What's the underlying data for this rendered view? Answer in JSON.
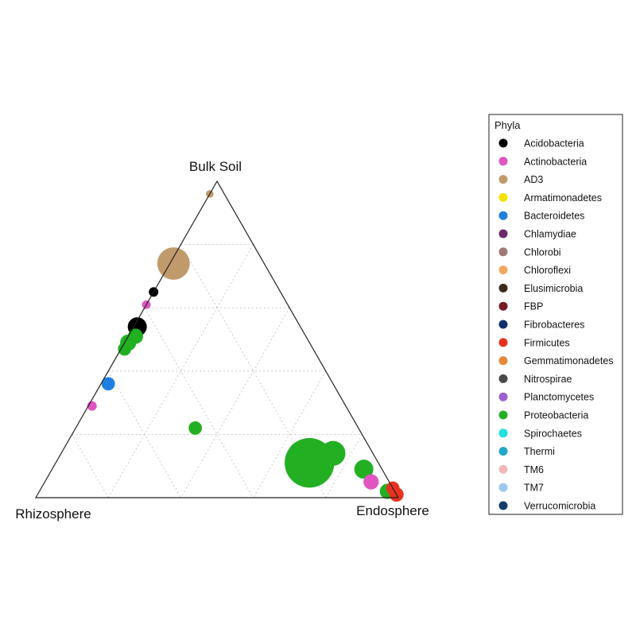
{
  "chart_data": {
    "type": "scatter",
    "subtype": "ternary",
    "vertices": {
      "top": "Bulk Soil",
      "left": "Rhizosphere",
      "right": "Endosphere"
    },
    "grid": "dotted, 5 divisions",
    "legend": {
      "title": "Phyla",
      "placement": "right",
      "entries": [
        {
          "name": "Acidobacteria",
          "color": "#000000"
        },
        {
          "name": "Actinobacteria",
          "color": "#e055c0"
        },
        {
          "name": "AD3",
          "color": "#c19a6b"
        },
        {
          "name": "Armatimonadetes",
          "color": "#f2e200"
        },
        {
          "name": "Bacteroidetes",
          "color": "#1e7fe0"
        },
        {
          "name": "Chlamydiae",
          "color": "#6b2a6b"
        },
        {
          "name": "Chlorobi",
          "color": "#a07878"
        },
        {
          "name": "Chloroflexi",
          "color": "#f0a860"
        },
        {
          "name": "Elusimicrobia",
          "color": "#3b2a1a"
        },
        {
          "name": "FBP",
          "color": "#7a1a26"
        },
        {
          "name": "Fibrobacteres",
          "color": "#10306a"
        },
        {
          "name": "Firmicutes",
          "color": "#e8321e"
        },
        {
          "name": "Gemmatimonadetes",
          "color": "#e8883a"
        },
        {
          "name": "Nitrospirae",
          "color": "#4a4a4a"
        },
        {
          "name": "Planctomycetes",
          "color": "#9a60d0"
        },
        {
          "name": "Proteobacteria",
          "color": "#22b022"
        },
        {
          "name": "Spirochaetes",
          "color": "#20e0e0"
        },
        {
          "name": "Thermi",
          "color": "#20a8c8"
        },
        {
          "name": "TM6",
          "color": "#f2b8b8"
        },
        {
          "name": "TM7",
          "color": "#9cc8f0"
        },
        {
          "name": "Verrucomicrobia",
          "color": "#133d6a"
        }
      ]
    },
    "points": [
      {
        "phylum": "AD3",
        "bulk": 0.74,
        "rhizo": 0.25,
        "endo": 0.01,
        "size": 3.4
      },
      {
        "phylum": "Acidobacteria",
        "bulk": 0.54,
        "rhizo": 0.45,
        "endo": 0.01,
        "size": 2.0
      },
      {
        "phylum": "Proteobacteria",
        "bulk": 0.51,
        "rhizo": 0.47,
        "endo": 0.02,
        "size": 1.6
      },
      {
        "phylum": "Proteobacteria",
        "bulk": 0.49,
        "rhizo": 0.5,
        "endo": 0.01,
        "size": 1.7
      },
      {
        "phylum": "Proteobacteria",
        "bulk": 0.47,
        "rhizo": 0.52,
        "endo": 0.01,
        "size": 1.4
      },
      {
        "phylum": "Bacteroidetes",
        "bulk": 0.36,
        "rhizo": 0.62,
        "endo": 0.02,
        "size": 1.4
      },
      {
        "phylum": "Actinobacteria",
        "bulk": 0.29,
        "rhizo": 0.7,
        "endo": 0.01,
        "size": 1.0
      },
      {
        "phylum": "Proteobacteria",
        "bulk": 0.22,
        "rhizo": 0.45,
        "endo": 0.33,
        "size": 1.4
      },
      {
        "phylum": "Proteobacteria",
        "bulk": 0.11,
        "rhizo": 0.19,
        "endo": 0.7,
        "size": 5.2
      },
      {
        "phylum": "Proteobacteria",
        "bulk": 0.14,
        "rhizo": 0.2,
        "endo": 0.66,
        "size": 2.5
      },
      {
        "phylum": "Proteobacteria",
        "bulk": 0.14,
        "rhizo": 0.11,
        "endo": 0.75,
        "size": 2.6
      },
      {
        "phylum": "Proteobacteria",
        "bulk": 0.09,
        "rhizo": 0.05,
        "endo": 0.86,
        "size": 2.0
      },
      {
        "phylum": "Actinobacteria",
        "bulk": 0.05,
        "rhizo": 0.05,
        "endo": 0.9,
        "size": 1.6
      },
      {
        "phylum": "Proteobacteria",
        "bulk": 0.02,
        "rhizo": 0.02,
        "endo": 0.96,
        "size": 1.6
      },
      {
        "phylum": "Firmicutes",
        "bulk": 0.03,
        "rhizo": 0.0,
        "endo": 0.97,
        "size": 1.4
      },
      {
        "phylum": "Firmicutes",
        "bulk": 0.01,
        "rhizo": 0.0,
        "endo": 0.99,
        "size": 1.5
      },
      {
        "phylum": "AD3",
        "bulk": 0.96,
        "rhizo": 0.04,
        "endo": 0.0,
        "size": 0.8
      },
      {
        "phylum": "Acidobacteria",
        "bulk": 0.65,
        "rhizo": 0.35,
        "endo": 0.0,
        "size": 1.0
      },
      {
        "phylum": "Actinobacteria",
        "bulk": 0.61,
        "rhizo": 0.39,
        "endo": 0.0,
        "size": 0.9
      }
    ]
  }
}
